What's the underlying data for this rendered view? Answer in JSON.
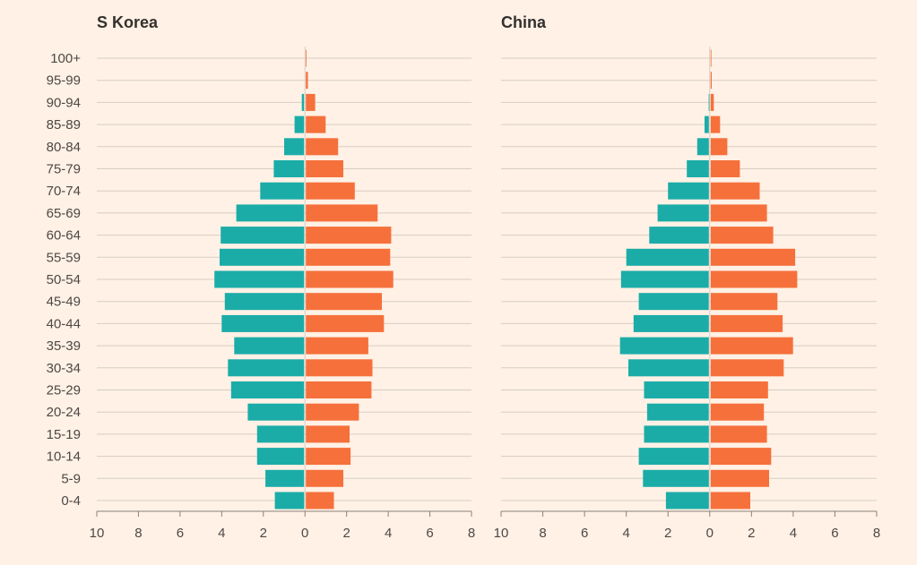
{
  "chart_data": [
    {
      "type": "bar",
      "subtype": "population-pyramid",
      "title": "S Korea",
      "categories": [
        "100+",
        "95-99",
        "90-94",
        "85-89",
        "80-84",
        "75-79",
        "70-74",
        "65-69",
        "60-64",
        "55-59",
        "50-54",
        "45-49",
        "40-44",
        "35-39",
        "30-34",
        "25-29",
        "20-24",
        "15-19",
        "10-14",
        "5-9",
        "0-4"
      ],
      "series": [
        {
          "values": [
            0,
            0,
            0.15,
            0.5,
            1.0,
            1.5,
            2.15,
            3.3,
            4.05,
            4.1,
            4.35,
            3.85,
            4.0,
            3.4,
            3.7,
            3.55,
            2.75,
            2.3,
            2.3,
            1.9,
            1.45
          ],
          "side": "left",
          "color": "#1baca8"
        },
        {
          "values": [
            0.02,
            0.1,
            0.45,
            0.95,
            1.55,
            1.8,
            2.35,
            3.45,
            4.1,
            4.05,
            4.2,
            3.65,
            3.75,
            3.0,
            3.2,
            3.15,
            2.55,
            2.1,
            2.15,
            1.8,
            1.35
          ],
          "side": "right",
          "color": "#f6703b"
        }
      ],
      "xlim": [
        -10,
        8
      ],
      "xticks": [
        "10",
        "8",
        "6",
        "4",
        "2",
        "0",
        "2",
        "4",
        "6",
        "8"
      ],
      "grid": true
    },
    {
      "type": "bar",
      "subtype": "population-pyramid",
      "title": "China",
      "categories": [
        "100+",
        "95-99",
        "90-94",
        "85-89",
        "80-84",
        "75-79",
        "70-74",
        "65-69",
        "60-64",
        "55-59",
        "50-54",
        "45-49",
        "40-44",
        "35-39",
        "30-34",
        "25-29",
        "20-24",
        "15-19",
        "10-14",
        "5-9",
        "0-4"
      ],
      "series": [
        {
          "values": [
            0,
            0,
            0.05,
            0.25,
            0.6,
            1.1,
            2.0,
            2.5,
            2.9,
            4.0,
            4.25,
            3.4,
            3.65,
            4.3,
            3.9,
            3.15,
            3.0,
            3.15,
            3.4,
            3.2,
            2.1
          ],
          "side": "left",
          "color": "#1baca8"
        },
        {
          "values": [
            0.02,
            0.05,
            0.15,
            0.45,
            0.8,
            1.4,
            2.35,
            2.7,
            3.0,
            4.05,
            4.15,
            3.2,
            3.45,
            3.95,
            3.5,
            2.75,
            2.55,
            2.7,
            2.9,
            2.8,
            1.9
          ],
          "side": "right",
          "color": "#f6703b"
        }
      ],
      "xlim": [
        -10,
        8
      ],
      "xticks": [
        "10",
        "8",
        "6",
        "4",
        "2",
        "0",
        "2",
        "4",
        "6",
        "8"
      ],
      "grid": true
    }
  ]
}
